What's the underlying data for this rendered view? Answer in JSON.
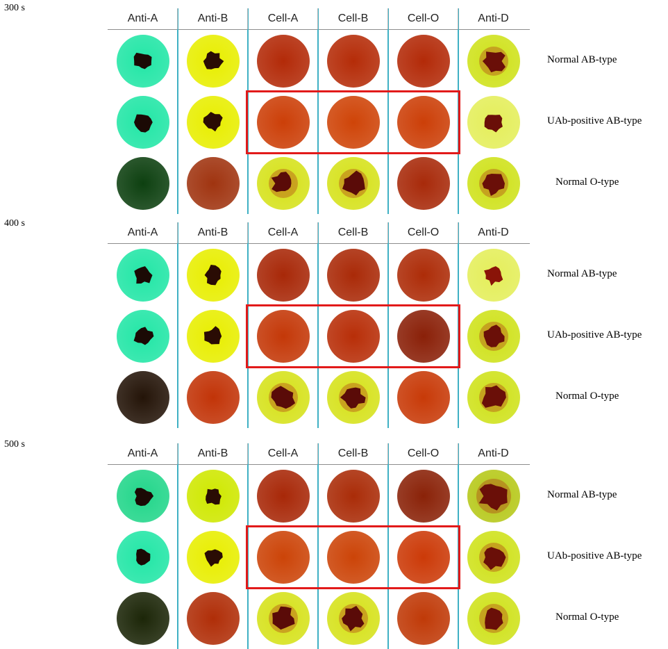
{
  "columns": [
    "Anti-A",
    "Anti-B",
    "Cell-A",
    "Cell-B",
    "Cell-O",
    "Anti-D"
  ],
  "panels": [
    {
      "time": "300 s",
      "rows": [
        {
          "label": "Normal AB-type",
          "wells": [
            {
              "bg": "#22e6a6",
              "clump": "#1b0a05",
              "size": 1
            },
            {
              "bg": "#e8ee00",
              "clump": "#2a0c04",
              "size": 1
            },
            {
              "bg": "#b32a08",
              "clump": null,
              "size": 0
            },
            {
              "bg": "#b52c08",
              "clump": null,
              "size": 0
            },
            {
              "bg": "#b32a08",
              "clump": null,
              "size": 0
            },
            {
              "bg": "#cfe21a",
              "clump": "#6a0f08",
              "size": 2
            }
          ]
        },
        {
          "label": "UAb-positive  AB-type",
          "wells": [
            {
              "bg": "#22e6a6",
              "clump": "#1b0a05",
              "size": 1
            },
            {
              "bg": "#e8ee00",
              "clump": "#2a0c04",
              "size": 1
            },
            {
              "bg": "#cc3f08",
              "clump": null,
              "size": 0
            },
            {
              "bg": "#cf4408",
              "clump": null,
              "size": 0
            },
            {
              "bg": "#cc3f08",
              "clump": null,
              "size": 0
            },
            {
              "bg": "#e4ee5a",
              "clump": "#6a0f08",
              "size": 1
            }
          ]
        },
        {
          "label": "Normal O-type",
          "wells": [
            {
              "bg": "#0d4010",
              "clump": null,
              "size": 0
            },
            {
              "bg": "#a03410",
              "clump": null,
              "size": 0
            },
            {
              "bg": "#d6e21a",
              "clump": "#5a0b08",
              "size": 2
            },
            {
              "bg": "#d6e21a",
              "clump": "#5a0b08",
              "size": 2
            },
            {
              "bg": "#a82a0a",
              "clump": null,
              "size": 0
            },
            {
              "bg": "#cfe21a",
              "clump": "#6a0f08",
              "size": 2
            }
          ]
        }
      ]
    },
    {
      "time": "400 s",
      "rows": [
        {
          "label": "Normal AB-type",
          "wells": [
            {
              "bg": "#22e6a6",
              "clump": "#1b0a05",
              "size": 1
            },
            {
              "bg": "#e8ee00",
              "clump": "#2a0c04",
              "size": 1
            },
            {
              "bg": "#a82808",
              "clump": null,
              "size": 0
            },
            {
              "bg": "#aa2a08",
              "clump": null,
              "size": 0
            },
            {
              "bg": "#ad2c08",
              "clump": null,
              "size": 0
            },
            {
              "bg": "#e4ee5a",
              "clump": "#8a1408",
              "size": 1
            }
          ]
        },
        {
          "label": "UAb-positive  AB-type",
          "wells": [
            {
              "bg": "#22e6a6",
              "clump": "#1b0a05",
              "size": 1
            },
            {
              "bg": "#e8ee00",
              "clump": "#2a0c04",
              "size": 1
            },
            {
              "bg": "#c43808",
              "clump": null,
              "size": 0
            },
            {
              "bg": "#b82e08",
              "clump": null,
              "size": 0
            },
            {
              "bg": "#8a2008",
              "clump": null,
              "size": 0
            },
            {
              "bg": "#cfe21a",
              "clump": "#6a0f08",
              "size": 2
            }
          ]
        },
        {
          "label": "Normal O-type",
          "wells": [
            {
              "bg": "#241408",
              "clump": null,
              "size": 0
            },
            {
              "bg": "#c23408",
              "clump": null,
              "size": 0
            },
            {
              "bg": "#d6e21a",
              "clump": "#5a0b08",
              "size": 2
            },
            {
              "bg": "#d6e21a",
              "clump": "#5a0b08",
              "size": 2
            },
            {
              "bg": "#c83a08",
              "clump": null,
              "size": 0
            },
            {
              "bg": "#cfe21a",
              "clump": "#6a0f08",
              "size": 2
            }
          ]
        }
      ]
    },
    {
      "time": "500 s",
      "rows": [
        {
          "label": "Normal AB-type",
          "wells": [
            {
              "bg": "#22d68a",
              "clump": "#1b0a05",
              "size": 1
            },
            {
              "bg": "#cfe800",
              "clump": "#2a0c04",
              "size": 1
            },
            {
              "bg": "#a82808",
              "clump": null,
              "size": 0
            },
            {
              "bg": "#aa2c08",
              "clump": null,
              "size": 0
            },
            {
              "bg": "#8a2208",
              "clump": null,
              "size": 0
            },
            {
              "bg": "#b6c818",
              "clump": "#6a0f08",
              "size": 3
            }
          ]
        },
        {
          "label": "UAb-positive  AB-type",
          "wells": [
            {
              "bg": "#22e6a6",
              "clump": "#1b0a05",
              "size": 1
            },
            {
              "bg": "#e8ee00",
              "clump": "#2a0c04",
              "size": 1
            },
            {
              "bg": "#cc4408",
              "clump": null,
              "size": 0
            },
            {
              "bg": "#cc4408",
              "clump": null,
              "size": 0
            },
            {
              "bg": "#cc3a08",
              "clump": null,
              "size": 0
            },
            {
              "bg": "#cfe21a",
              "clump": "#6a0f08",
              "size": 2
            }
          ]
        },
        {
          "label": "Normal O-type",
          "wells": [
            {
              "bg": "#1c2608",
              "clump": null,
              "size": 0
            },
            {
              "bg": "#b02e08",
              "clump": null,
              "size": 0
            },
            {
              "bg": "#d6e21a",
              "clump": "#5a0b08",
              "size": 2
            },
            {
              "bg": "#d6e21a",
              "clump": "#5a0b08",
              "size": 2
            },
            {
              "bg": "#c03a08",
              "clump": null,
              "size": 0
            },
            {
              "bg": "#cfe21a",
              "clump": "#6a0f08",
              "size": 2
            }
          ]
        }
      ]
    }
  ]
}
